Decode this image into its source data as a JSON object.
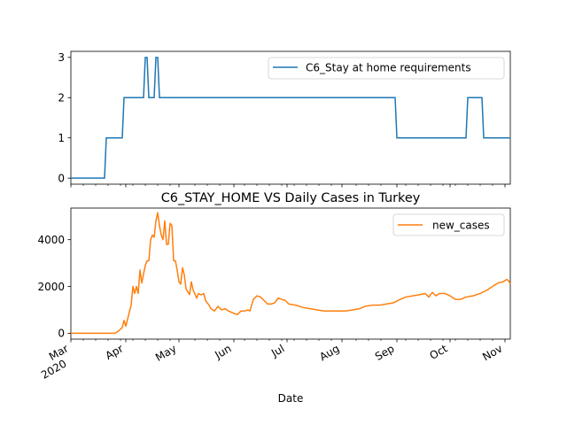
{
  "chart_data": [
    {
      "type": "line",
      "title": "",
      "xlabel": "",
      "ylabel": "",
      "ylim": [
        -0.15,
        3.15
      ],
      "yticks": [
        0,
        1,
        2,
        3
      ],
      "grid": false,
      "legend_position": "top-right",
      "series": [
        {
          "name": "C6_Stay at home requirements",
          "color": "#1f77b4",
          "points": [
            [
              "2020-03-01",
              0
            ],
            [
              "2020-03-20",
              0
            ],
            [
              "2020-03-21",
              1
            ],
            [
              "2020-03-30",
              1
            ],
            [
              "2020-03-31",
              2
            ],
            [
              "2020-04-11",
              2
            ],
            [
              "2020-04-12",
              3
            ],
            [
              "2020-04-13",
              3
            ],
            [
              "2020-04-14",
              2
            ],
            [
              "2020-04-17",
              2
            ],
            [
              "2020-04-18",
              3
            ],
            [
              "2020-04-19",
              3
            ],
            [
              "2020-04-20",
              2
            ],
            [
              "2020-08-31",
              2
            ],
            [
              "2020-09-01",
              1
            ],
            [
              "2020-10-10",
              1
            ],
            [
              "2020-10-11",
              2
            ],
            [
              "2020-10-19",
              2
            ],
            [
              "2020-10-20",
              1
            ],
            [
              "2020-11-04",
              1
            ]
          ]
        }
      ]
    },
    {
      "type": "line",
      "title": "C6_STAY_HOME VS Daily Cases in Turkey",
      "xlabel": "Date",
      "ylabel": "",
      "ylim": [
        -250,
        5350
      ],
      "yticks": [
        0,
        2000,
        4000
      ],
      "grid": false,
      "legend_position": "top-right",
      "series": [
        {
          "name": "new_cases",
          "color": "#ff7f0e",
          "points": [
            [
              "2020-03-01",
              0
            ],
            [
              "2020-03-26",
              0
            ],
            [
              "2020-03-28",
              100
            ],
            [
              "2020-03-30",
              250
            ],
            [
              "2020-03-31",
              550
            ],
            [
              "2020-04-01",
              300
            ],
            [
              "2020-04-03",
              900
            ],
            [
              "2020-04-04",
              1200
            ],
            [
              "2020-04-05",
              2000
            ],
            [
              "2020-04-06",
              1700
            ],
            [
              "2020-04-07",
              2000
            ],
            [
              "2020-04-08",
              1700
            ],
            [
              "2020-04-09",
              2700
            ],
            [
              "2020-04-10",
              2150
            ],
            [
              "2020-04-12",
              2900
            ],
            [
              "2020-04-13",
              3100
            ],
            [
              "2020-04-14",
              3100
            ],
            [
              "2020-04-15",
              4000
            ],
            [
              "2020-04-16",
              4200
            ],
            [
              "2020-04-17",
              4100
            ],
            [
              "2020-04-18",
              4800
            ],
            [
              "2020-04-19",
              5150
            ],
            [
              "2020-04-20",
              4600
            ],
            [
              "2020-04-21",
              4200
            ],
            [
              "2020-04-22",
              4000
            ],
            [
              "2020-04-23",
              4800
            ],
            [
              "2020-04-24",
              3800
            ],
            [
              "2020-04-25",
              3800
            ],
            [
              "2020-04-26",
              4700
            ],
            [
              "2020-04-27",
              4600
            ],
            [
              "2020-04-28",
              3100
            ],
            [
              "2020-04-29",
              3100
            ],
            [
              "2020-04-30",
              2700
            ],
            [
              "2020-05-01",
              2200
            ],
            [
              "2020-05-02",
              2100
            ],
            [
              "2020-05-03",
              2800
            ],
            [
              "2020-05-04",
              2500
            ],
            [
              "2020-05-05",
              1900
            ],
            [
              "2020-05-07",
              1650
            ],
            [
              "2020-05-08",
              2200
            ],
            [
              "2020-05-09",
              1850
            ],
            [
              "2020-05-11",
              1500
            ],
            [
              "2020-05-12",
              1700
            ],
            [
              "2020-05-13",
              1650
            ],
            [
              "2020-05-14",
              1650
            ],
            [
              "2020-05-15",
              1700
            ],
            [
              "2020-05-16",
              1400
            ],
            [
              "2020-05-18",
              1200
            ],
            [
              "2020-05-19",
              1050
            ],
            [
              "2020-05-21",
              950
            ],
            [
              "2020-05-23",
              1150
            ],
            [
              "2020-05-25",
              1000
            ],
            [
              "2020-05-27",
              1050
            ],
            [
              "2020-05-29",
              950
            ],
            [
              "2020-06-01",
              850
            ],
            [
              "2020-06-03",
              800
            ],
            [
              "2020-06-05",
              950
            ],
            [
              "2020-06-07",
              950
            ],
            [
              "2020-06-09",
              1000
            ],
            [
              "2020-06-10",
              950
            ],
            [
              "2020-06-12",
              1450
            ],
            [
              "2020-06-14",
              1600
            ],
            [
              "2020-06-16",
              1550
            ],
            [
              "2020-06-18",
              1400
            ],
            [
              "2020-06-20",
              1250
            ],
            [
              "2020-06-22",
              1250
            ],
            [
              "2020-06-24",
              1300
            ],
            [
              "2020-06-26",
              1500
            ],
            [
              "2020-06-28",
              1450
            ],
            [
              "2020-06-30",
              1400
            ],
            [
              "2020-07-02",
              1250
            ],
            [
              "2020-07-06",
              1200
            ],
            [
              "2020-07-10",
              1100
            ],
            [
              "2020-07-14",
              1050
            ],
            [
              "2020-07-18",
              1000
            ],
            [
              "2020-07-22",
              950
            ],
            [
              "2020-07-28",
              950
            ],
            [
              "2020-08-03",
              950
            ],
            [
              "2020-08-07",
              1000
            ],
            [
              "2020-08-11",
              1050
            ],
            [
              "2020-08-14",
              1150
            ],
            [
              "2020-08-18",
              1200
            ],
            [
              "2020-08-22",
              1200
            ],
            [
              "2020-08-26",
              1250
            ],
            [
              "2020-08-30",
              1300
            ],
            [
              "2020-09-03",
              1450
            ],
            [
              "2020-09-06",
              1550
            ],
            [
              "2020-09-10",
              1600
            ],
            [
              "2020-09-14",
              1650
            ],
            [
              "2020-09-17",
              1700
            ],
            [
              "2020-09-19",
              1550
            ],
            [
              "2020-09-21",
              1750
            ],
            [
              "2020-09-23",
              1600
            ],
            [
              "2020-09-25",
              1700
            ],
            [
              "2020-09-28",
              1700
            ],
            [
              "2020-10-01",
              1600
            ],
            [
              "2020-10-04",
              1450
            ],
            [
              "2020-10-07",
              1450
            ],
            [
              "2020-10-10",
              1550
            ],
            [
              "2020-10-14",
              1600
            ],
            [
              "2020-10-18",
              1700
            ],
            [
              "2020-10-22",
              1850
            ],
            [
              "2020-10-25",
              2000
            ],
            [
              "2020-10-28",
              2150
            ],
            [
              "2020-10-31",
              2200
            ],
            [
              "2020-11-02",
              2300
            ],
            [
              "2020-11-03",
              2250
            ],
            [
              "2020-11-04",
              2100
            ]
          ]
        }
      ]
    }
  ],
  "x_axis": {
    "min": "2020-03-01",
    "max": "2020-11-04",
    "ticks": [
      {
        "date": "2020-03-01",
        "label": "Mar",
        "year": "2020"
      },
      {
        "date": "2020-04-01",
        "label": "Apr"
      },
      {
        "date": "2020-05-01",
        "label": "May"
      },
      {
        "date": "2020-06-01",
        "label": "Jun"
      },
      {
        "date": "2020-07-01",
        "label": "Jul"
      },
      {
        "date": "2020-08-01",
        "label": "Aug"
      },
      {
        "date": "2020-09-01",
        "label": "Sep"
      },
      {
        "date": "2020-10-01",
        "label": "Oct"
      },
      {
        "date": "2020-11-01",
        "label": "Nov"
      }
    ]
  }
}
